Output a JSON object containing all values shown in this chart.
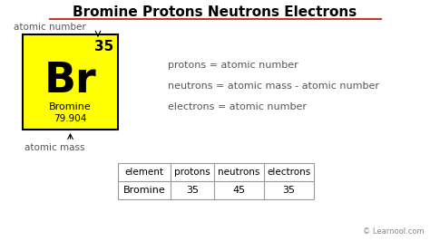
{
  "title": "Bromine Protons Neutrons Electrons",
  "title_color": "#000000",
  "title_underline_color": "#c0392b",
  "bg_color": "#ffffff",
  "element_symbol": "Br",
  "element_name": "Bromine",
  "atomic_number": "35",
  "atomic_mass": "79.904",
  "element_box_color": "#ffff00",
  "element_box_border": "#000000",
  "label_atomic_number": "atomic number",
  "label_atomic_mass": "atomic mass",
  "formula_line1": "protons = atomic number",
  "formula_line2": "neutrons = atomic mass - atomic number",
  "formula_line3": "electrons = atomic number",
  "table_headers": [
    "element",
    "protons",
    "neutrons",
    "electrons"
  ],
  "table_row": [
    "Bromine",
    "35",
    "45",
    "35"
  ],
  "table_border_color": "#999999",
  "watermark": "© Learnool.com",
  "text_color": "#555555",
  "formula_color": "#555555"
}
